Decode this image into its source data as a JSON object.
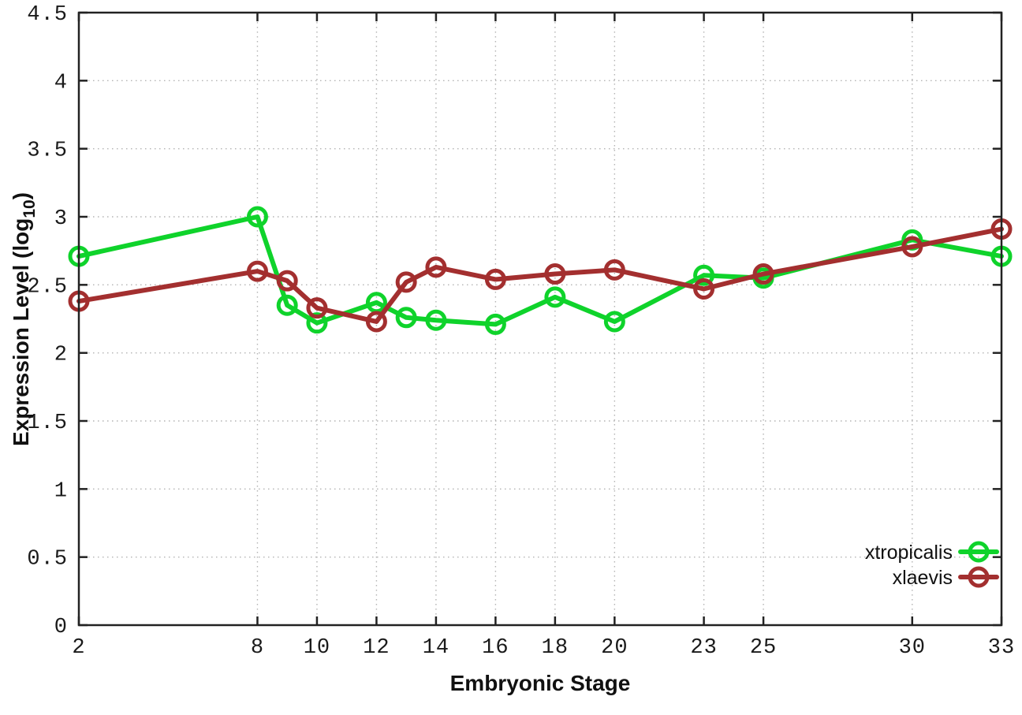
{
  "chart_data": {
    "type": "line",
    "title": "",
    "xlabel": "Embryonic Stage",
    "ylabel": "Expression Level (log10)",
    "ylabel_prefix": "Expression Level (log",
    "ylabel_sub": "10",
    "ylabel_suffix": ")",
    "x": [
      2,
      8,
      9,
      10,
      12,
      13,
      14,
      16,
      18,
      20,
      23,
      25,
      30,
      33
    ],
    "series": [
      {
        "name": "xtropicalis",
        "color": "#0fd32b",
        "marker": "open-circle",
        "values": [
          2.71,
          3.0,
          2.35,
          2.22,
          2.37,
          2.26,
          2.24,
          2.21,
          2.41,
          2.23,
          2.57,
          2.55,
          2.83,
          2.71
        ]
      },
      {
        "name": "xlaevis",
        "color": "#a32f2f",
        "marker": "open-circle",
        "values": [
          2.38,
          2.6,
          2.53,
          2.33,
          2.23,
          2.52,
          2.63,
          2.54,
          2.58,
          2.61,
          2.47,
          2.58,
          2.78,
          2.91
        ]
      }
    ],
    "xlim": [
      2,
      33
    ],
    "ylim": [
      0,
      4.5
    ],
    "xtick_values": [
      2,
      8,
      10,
      12,
      14,
      16,
      18,
      20,
      23,
      25,
      30,
      33
    ],
    "xtick_labels": [
      "2",
      "8",
      "10",
      "12",
      "14",
      "16",
      "18",
      "20",
      "23",
      "25",
      "30",
      "33"
    ],
    "ytick_values": [
      0,
      0.5,
      1,
      1.5,
      2,
      2.5,
      3,
      3.5,
      4,
      4.5
    ],
    "ytick_labels": [
      "0",
      "0.5",
      "1",
      "1.5",
      "2",
      "2.5",
      "3",
      "3.5",
      "4",
      "4.5"
    ],
    "grid": true,
    "grid_style": "dotted",
    "legend_position": "bottom-right",
    "colors": {
      "axis": "#222222",
      "grid": "#b3b3b3",
      "background": "#ffffff"
    }
  }
}
